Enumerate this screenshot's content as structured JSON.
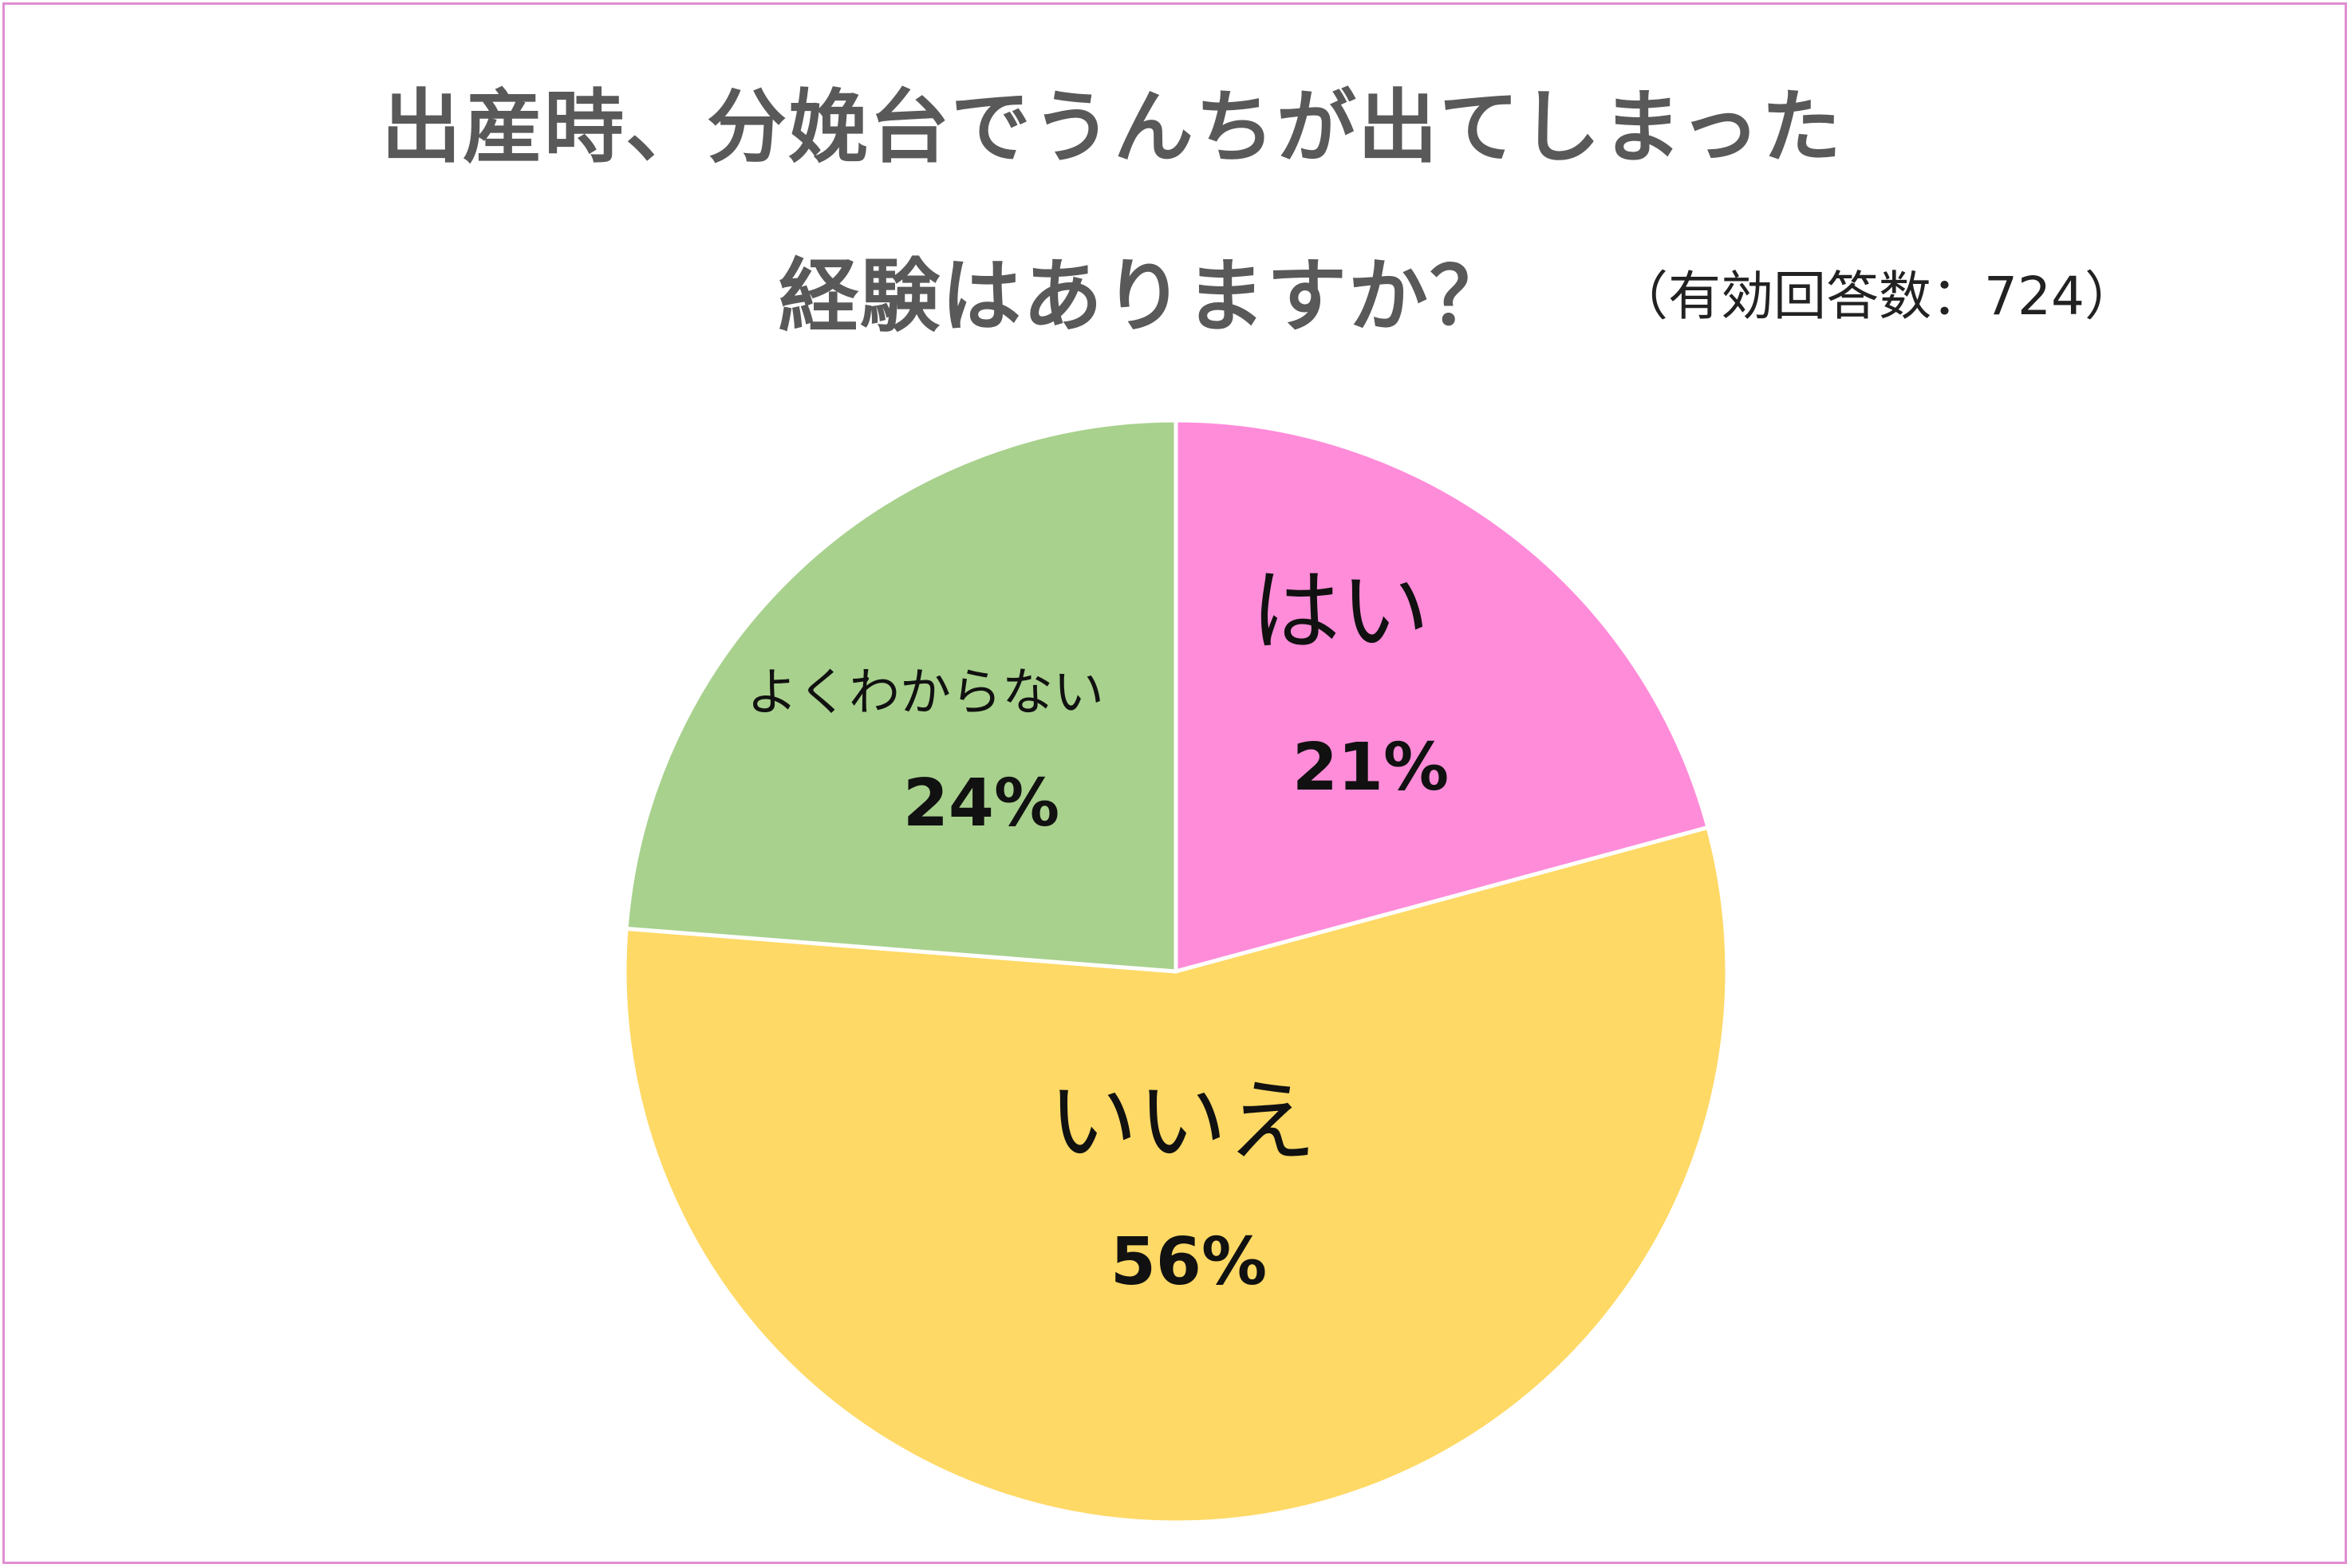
{
  "chart_data": {
    "type": "pie",
    "title_line1": "出産時、分娩台でうんちが出てしまった",
    "title_line2": "経験はありますか？",
    "note": "（有効回答数：724）",
    "slices": [
      {
        "label": "はい",
        "value": 21,
        "percent_label": "21%",
        "color": "#ff8cd9"
      },
      {
        "label": "いいえ",
        "value": 56,
        "percent_label": "56%",
        "color": "#fed966"
      },
      {
        "label": "よくわからない",
        "value": 24,
        "percent_label": "24%",
        "color": "#a8d18d"
      }
    ],
    "start_angle": "12 o'clock",
    "direction": "clockwise",
    "border_color": "#e08ed0"
  }
}
